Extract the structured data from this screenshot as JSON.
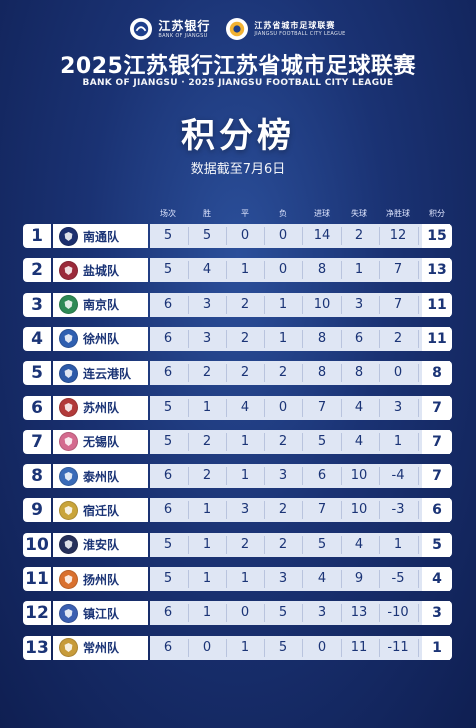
{
  "header": {
    "bank_logo_name": "江苏银行",
    "bank_logo_sub": "BANK OF JIANGSU",
    "league_logo_name": "江苏省城市足球联赛",
    "league_logo_sub": "JIANGSU FOOTBALL CITY LEAGUE",
    "title": "2025江苏银行江苏省城市足球联赛",
    "subtitle": "BANK OF JIANGSU · 2025 JIANGSU FOOTBALL CITY LEAGUE",
    "heading": "积分榜",
    "date_note": "数据截至7月6日"
  },
  "columns": [
    "场次",
    "胜",
    "平",
    "负",
    "进球",
    "失球",
    "净胜球",
    "积分"
  ],
  "standings": [
    {
      "rank": "1",
      "team": "南通队",
      "played": "5",
      "won": "5",
      "drawn": "0",
      "lost": "0",
      "gf": "14",
      "ga": "2",
      "gd": "12",
      "pts": "15",
      "badge_color": "#1c2f6e"
    },
    {
      "rank": "2",
      "team": "盐城队",
      "played": "5",
      "won": "4",
      "drawn": "1",
      "lost": "0",
      "gf": "8",
      "ga": "1",
      "gd": "7",
      "pts": "13",
      "badge_color": "#9b2a3a"
    },
    {
      "rank": "3",
      "team": "南京队",
      "played": "6",
      "won": "3",
      "drawn": "2",
      "lost": "1",
      "gf": "10",
      "ga": "3",
      "gd": "7",
      "pts": "11",
      "badge_color": "#2e8a55"
    },
    {
      "rank": "4",
      "team": "徐州队",
      "played": "6",
      "won": "3",
      "drawn": "2",
      "lost": "1",
      "gf": "8",
      "ga": "6",
      "gd": "2",
      "pts": "11",
      "badge_color": "#2f5fb0"
    },
    {
      "rank": "5",
      "team": "连云港队",
      "played": "6",
      "won": "2",
      "drawn": "2",
      "lost": "2",
      "gf": "8",
      "ga": "8",
      "gd": "0",
      "pts": "8",
      "badge_color": "#2d5aa8"
    },
    {
      "rank": "6",
      "team": "苏州队",
      "played": "5",
      "won": "1",
      "drawn": "4",
      "lost": "0",
      "gf": "7",
      "ga": "4",
      "gd": "3",
      "pts": "7",
      "badge_color": "#b23a3a"
    },
    {
      "rank": "7",
      "team": "无锡队",
      "played": "5",
      "won": "2",
      "drawn": "1",
      "lost": "2",
      "gf": "5",
      "ga": "4",
      "gd": "1",
      "pts": "7",
      "badge_color": "#d46a8e"
    },
    {
      "rank": "8",
      "team": "泰州队",
      "played": "6",
      "won": "2",
      "drawn": "1",
      "lost": "3",
      "gf": "6",
      "ga": "10",
      "gd": "-4",
      "pts": "7",
      "badge_color": "#3a6bb8"
    },
    {
      "rank": "9",
      "team": "宿迁队",
      "played": "6",
      "won": "1",
      "drawn": "3",
      "lost": "2",
      "gf": "7",
      "ga": "10",
      "gd": "-3",
      "pts": "6",
      "badge_color": "#c9a43a"
    },
    {
      "rank": "10",
      "team": "淮安队",
      "played": "5",
      "won": "1",
      "drawn": "2",
      "lost": "2",
      "gf": "5",
      "ga": "4",
      "gd": "1",
      "pts": "5",
      "badge_color": "#26305a"
    },
    {
      "rank": "11",
      "team": "扬州队",
      "played": "5",
      "won": "1",
      "drawn": "1",
      "lost": "3",
      "gf": "4",
      "ga": "9",
      "gd": "-5",
      "pts": "4",
      "badge_color": "#d9702e"
    },
    {
      "rank": "12",
      "team": "镇江队",
      "played": "6",
      "won": "1",
      "drawn": "0",
      "lost": "5",
      "gf": "3",
      "ga": "13",
      "gd": "-10",
      "pts": "3",
      "badge_color": "#3b5fb0"
    },
    {
      "rank": "13",
      "team": "常州队",
      "played": "6",
      "won": "0",
      "drawn": "1",
      "lost": "5",
      "gf": "0",
      "ga": "11",
      "gd": "-11",
      "pts": "1",
      "badge_color": "#c79b3a"
    }
  ]
}
